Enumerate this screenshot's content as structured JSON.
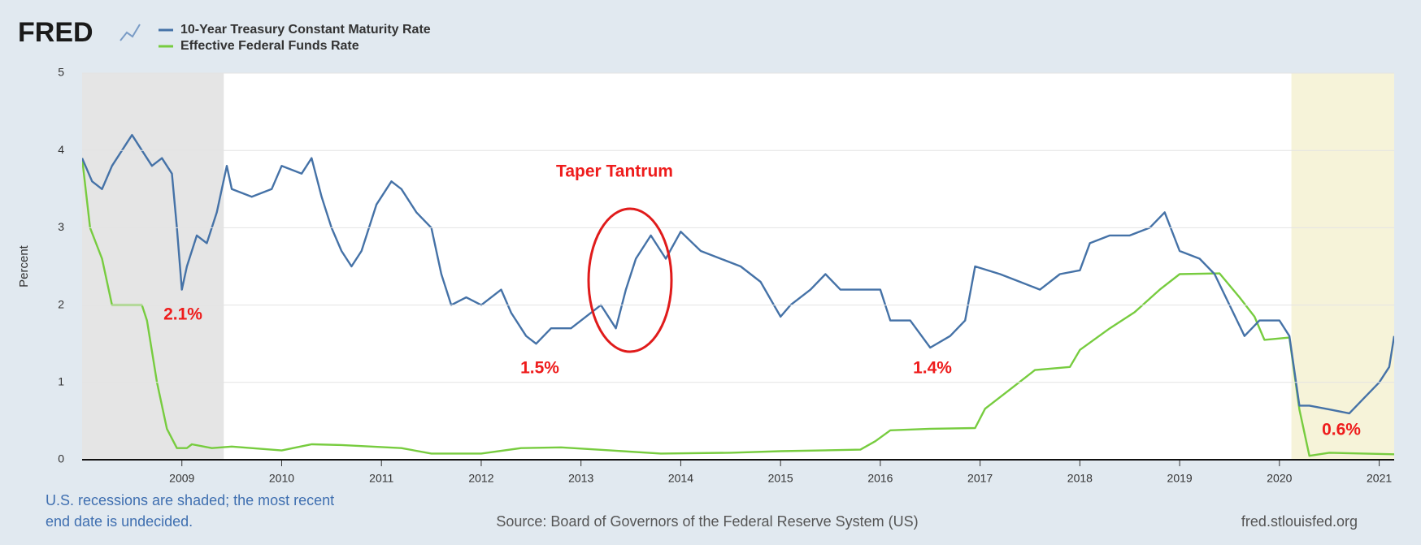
{
  "logo": "FRED",
  "chart_data": {
    "type": "line",
    "y_label": "Percent",
    "xlim": [
      2008,
      2021.15
    ],
    "xticks": [
      2009,
      2010,
      2011,
      2012,
      2013,
      2014,
      2015,
      2016,
      2017,
      2018,
      2019,
      2020,
      2021
    ],
    "ylim": [
      0,
      5
    ],
    "yticks": [
      0,
      1,
      2,
      3,
      4,
      5
    ],
    "grid": true,
    "legend": "top-left",
    "recessions": [
      {
        "start": 2007.92,
        "end": 2009.42,
        "color": "#e5e5e5"
      },
      {
        "start": 2020.12,
        "end": null,
        "color": "#f6f3d9"
      }
    ],
    "series": [
      {
        "name": "10-Year Treasury Constant Maturity Rate",
        "color": "#4572a7",
        "x": [
          2008.0,
          2008.1,
          2008.2,
          2008.3,
          2008.45,
          2008.5,
          2008.6,
          2008.7,
          2008.8,
          2008.9,
          2008.95,
          2009.0,
          2009.05,
          2009.15,
          2009.25,
          2009.35,
          2009.45,
          2009.5,
          2009.7,
          2009.9,
          2010.0,
          2010.2,
          2010.3,
          2010.4,
          2010.5,
          2010.6,
          2010.7,
          2010.8,
          2010.95,
          2011.1,
          2011.2,
          2011.35,
          2011.5,
          2011.6,
          2011.7,
          2011.85,
          2012.0,
          2012.2,
          2012.3,
          2012.45,
          2012.55,
          2012.7,
          2012.9,
          2013.1,
          2013.2,
          2013.35,
          2013.45,
          2013.55,
          2013.7,
          2013.85,
          2014.0,
          2014.2,
          2014.4,
          2014.6,
          2014.8,
          2015.0,
          2015.1,
          2015.3,
          2015.45,
          2015.6,
          2015.8,
          2016.0,
          2016.1,
          2016.3,
          2016.5,
          2016.7,
          2016.85,
          2016.95,
          2017.2,
          2017.4,
          2017.6,
          2017.8,
          2018.0,
          2018.1,
          2018.3,
          2018.5,
          2018.7,
          2018.85,
          2019.0,
          2019.2,
          2019.35,
          2019.5,
          2019.65,
          2019.8,
          2020.0,
          2020.1,
          2020.2,
          2020.3,
          2020.5,
          2020.7,
          2020.85,
          2021.0,
          2021.1,
          2021.15
        ],
        "values": [
          3.9,
          3.6,
          3.5,
          3.8,
          4.1,
          4.2,
          4.0,
          3.8,
          3.9,
          3.7,
          3.0,
          2.2,
          2.5,
          2.9,
          2.8,
          3.2,
          3.8,
          3.5,
          3.4,
          3.5,
          3.8,
          3.7,
          3.9,
          3.4,
          3.0,
          2.7,
          2.5,
          2.7,
          3.3,
          3.6,
          3.5,
          3.2,
          3.0,
          2.4,
          2.0,
          2.1,
          2.0,
          2.2,
          1.9,
          1.6,
          1.5,
          1.7,
          1.7,
          1.9,
          2.0,
          1.7,
          2.2,
          2.6,
          2.9,
          2.6,
          2.95,
          2.7,
          2.6,
          2.5,
          2.3,
          1.85,
          2.0,
          2.2,
          2.4,
          2.2,
          2.2,
          2.2,
          1.8,
          1.8,
          1.45,
          1.6,
          1.8,
          2.5,
          2.4,
          2.3,
          2.2,
          2.4,
          2.45,
          2.8,
          2.9,
          2.9,
          3.0,
          3.2,
          2.7,
          2.6,
          2.4,
          2.0,
          1.6,
          1.8,
          1.8,
          1.6,
          0.7,
          0.7,
          0.65,
          0.6,
          0.8,
          1.0,
          1.2,
          1.6
        ]
      },
      {
        "name": "Effective Federal Funds Rate",
        "color": "#77cc3f",
        "x": [
          2008.0,
          2008.08,
          2008.2,
          2008.3,
          2008.45,
          2008.6,
          2008.65,
          2008.75,
          2008.85,
          2008.95,
          2009.05,
          2009.1,
          2009.3,
          2009.5,
          2010.0,
          2010.3,
          2010.6,
          2011.2,
          2011.5,
          2012.0,
          2012.4,
          2012.8,
          2013.3,
          2013.8,
          2014.5,
          2015.0,
          2015.8,
          2015.95,
          2016.1,
          2016.5,
          2016.95,
          2017.05,
          2017.3,
          2017.55,
          2017.9,
          2018.0,
          2018.3,
          2018.55,
          2018.8,
          2019.0,
          2019.4,
          2019.6,
          2019.75,
          2019.85,
          2020.1,
          2020.2,
          2020.3,
          2020.5,
          2021.15
        ],
        "values": [
          3.9,
          3.0,
          2.6,
          2.0,
          2.0,
          2.0,
          1.8,
          1.0,
          0.4,
          0.15,
          0.15,
          0.2,
          0.15,
          0.17,
          0.12,
          0.2,
          0.19,
          0.15,
          0.08,
          0.08,
          0.15,
          0.16,
          0.12,
          0.08,
          0.09,
          0.11,
          0.13,
          0.24,
          0.38,
          0.4,
          0.41,
          0.66,
          0.91,
          1.16,
          1.2,
          1.42,
          1.7,
          1.91,
          2.2,
          2.4,
          2.41,
          2.1,
          1.85,
          1.55,
          1.58,
          0.65,
          0.05,
          0.09,
          0.07
        ]
      }
    ],
    "annotations": [
      "Taper Tantrum",
      "2.1%",
      "1.5%",
      "1.4%",
      "0.6%"
    ],
    "notes": [
      "U.S. recessions are shaded; the most recent",
      "end date is undecided."
    ],
    "source": "Source: Board of Governors of the Federal Reserve System (US)",
    "site": "fred.stlouisfed.org"
  }
}
